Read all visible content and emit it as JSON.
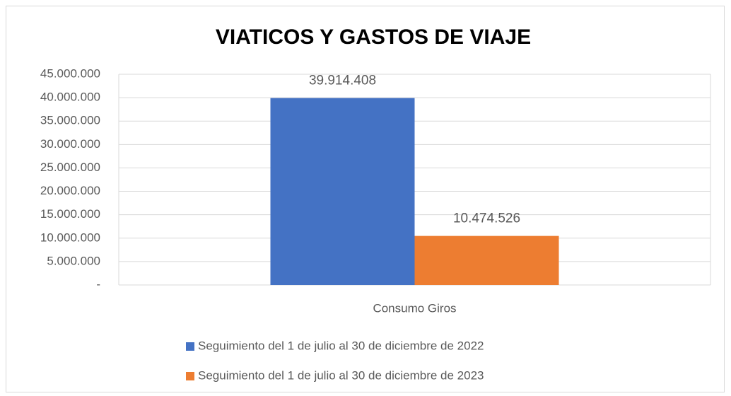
{
  "chart_data": {
    "type": "bar",
    "title": "VIATICOS Y GASTOS DE VIAJE",
    "categories": [
      "Consumo Giros"
    ],
    "series": [
      {
        "name": "Seguimiento del 1 de julio al 30 de diciembre de 2022",
        "color": "#4472c4",
        "values": [
          39914408
        ],
        "value_labels": [
          "39.914.408"
        ]
      },
      {
        "name": "Seguimiento del 1 de julio al 30 de diciembre de 2023",
        "color": "#ed7d31",
        "values": [
          10474526
        ],
        "value_labels": [
          "10.474.526"
        ]
      }
    ],
    "ylim": [
      0,
      45000000
    ],
    "yticks": [
      {
        "value": 0,
        "label": "-"
      },
      {
        "value": 5000000,
        "label": "5.000.000"
      },
      {
        "value": 10000000,
        "label": "10.000.000"
      },
      {
        "value": 15000000,
        "label": "15.000.000"
      },
      {
        "value": 20000000,
        "label": "20.000.000"
      },
      {
        "value": 25000000,
        "label": "25.000.000"
      },
      {
        "value": 30000000,
        "label": "30.000.000"
      },
      {
        "value": 35000000,
        "label": "35.000.000"
      },
      {
        "value": 40000000,
        "label": "40.000.000"
      },
      {
        "value": 45000000,
        "label": "45.000.000"
      }
    ],
    "grid": true,
    "legend": "bottom"
  }
}
